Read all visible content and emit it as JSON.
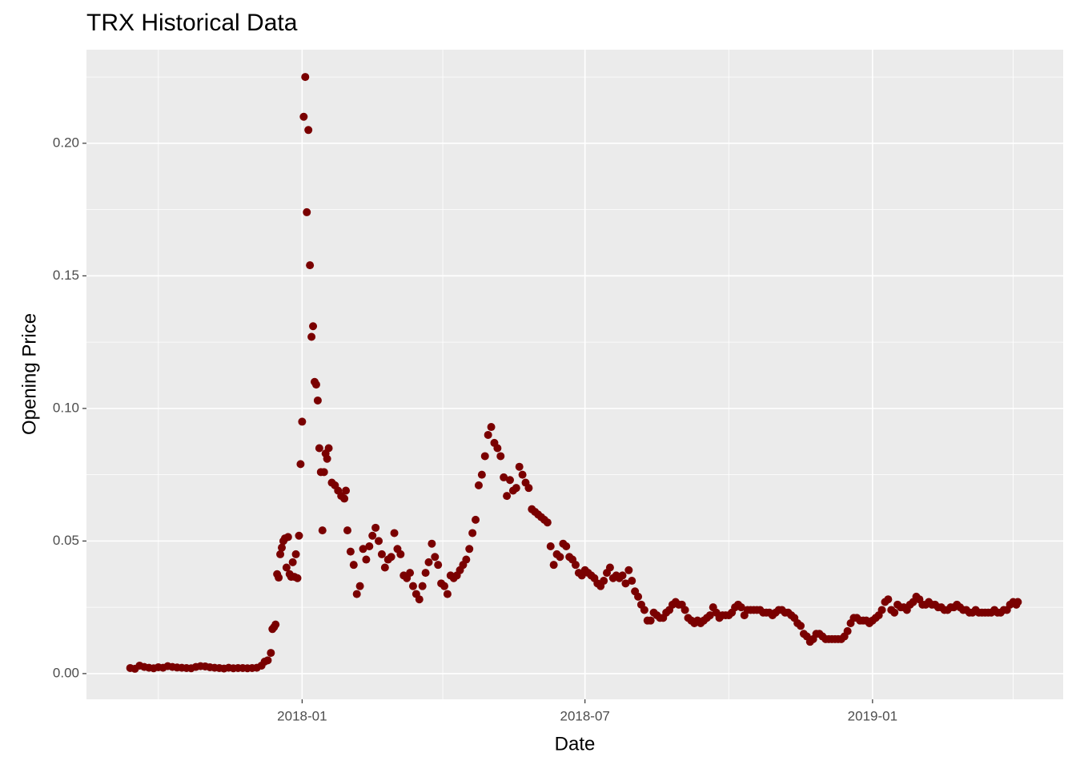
{
  "chart_data": {
    "type": "scatter",
    "title": "TRX Historical Data",
    "x_label": "Date",
    "y_label": "Opening Price",
    "color": "#7a0000",
    "grid": true,
    "xlim": [
      "2017-08-16",
      "2019-05-03"
    ],
    "ylim": [
      -0.0097,
      0.2353
    ],
    "xticks": [
      {
        "value": "2018-01-01",
        "label": "2018-01"
      },
      {
        "value": "2018-07-01",
        "label": "2018-07"
      },
      {
        "value": "2019-01-01",
        "label": "2019-01"
      }
    ],
    "yticks": [
      {
        "value": 0,
        "label": "0.00"
      },
      {
        "value": 0.05,
        "label": "0.05"
      },
      {
        "value": 0.1,
        "label": "0.10"
      },
      {
        "value": 0.15,
        "label": "0.15"
      },
      {
        "value": 0.2,
        "label": "0.20"
      }
    ],
    "x_minor_ticks": [
      "2017-10-01",
      "2018-04-01",
      "2018-10-01",
      "2019-04-01"
    ],
    "y_minor_ticks": [
      0.025,
      0.075,
      0.125,
      0.175,
      0.225
    ],
    "x": [
      "2017-09-13",
      "2017-09-16",
      "2017-09-19",
      "2017-09-22",
      "2017-09-25",
      "2017-09-28",
      "2017-10-01",
      "2017-10-04",
      "2017-10-07",
      "2017-10-10",
      "2017-10-13",
      "2017-10-16",
      "2017-10-19",
      "2017-10-22",
      "2017-10-25",
      "2017-10-28",
      "2017-10-31",
      "2017-11-03",
      "2017-11-06",
      "2017-11-09",
      "2017-11-12",
      "2017-11-15",
      "2017-11-18",
      "2017-11-21",
      "2017-11-24",
      "2017-11-27",
      "2017-11-30",
      "2017-12-03",
      "2017-12-06",
      "2017-12-08",
      "2017-12-10",
      "2017-12-12",
      "2017-12-13",
      "2017-12-14",
      "2017-12-15",
      "2017-12-16",
      "2017-12-17",
      "2017-12-18",
      "2017-12-19",
      "2017-12-20",
      "2017-12-21",
      "2017-12-22",
      "2017-12-23",
      "2017-12-24",
      "2017-12-25",
      "2017-12-26",
      "2017-12-27",
      "2017-12-28",
      "2017-12-29",
      "2017-12-30",
      "2017-12-31",
      "2018-01-01",
      "2018-01-02",
      "2018-01-03",
      "2018-01-04",
      "2018-01-05",
      "2018-01-06",
      "2018-01-07",
      "2018-01-08",
      "2018-01-09",
      "2018-01-10",
      "2018-01-11",
      "2018-01-12",
      "2018-01-13",
      "2018-01-14",
      "2018-01-15",
      "2018-01-16",
      "2018-01-17",
      "2018-01-18",
      "2018-01-20",
      "2018-01-22",
      "2018-01-24",
      "2018-01-26",
      "2018-01-28",
      "2018-01-29",
      "2018-01-30",
      "2018-02-01",
      "2018-02-03",
      "2018-02-05",
      "2018-02-07",
      "2018-02-09",
      "2018-02-11",
      "2018-02-13",
      "2018-02-15",
      "2018-02-17",
      "2018-02-19",
      "2018-02-21",
      "2018-02-23",
      "2018-02-25",
      "2018-02-27",
      "2018-03-01",
      "2018-03-03",
      "2018-03-05",
      "2018-03-07",
      "2018-03-09",
      "2018-03-11",
      "2018-03-13",
      "2018-03-15",
      "2018-03-17",
      "2018-03-19",
      "2018-03-21",
      "2018-03-23",
      "2018-03-25",
      "2018-03-27",
      "2018-03-29",
      "2018-03-31",
      "2018-04-02",
      "2018-04-04",
      "2018-04-06",
      "2018-04-08",
      "2018-04-10",
      "2018-04-12",
      "2018-04-14",
      "2018-04-16",
      "2018-04-18",
      "2018-04-20",
      "2018-04-22",
      "2018-04-24",
      "2018-04-26",
      "2018-04-28",
      "2018-04-30",
      "2018-05-02",
      "2018-05-04",
      "2018-05-06",
      "2018-05-08",
      "2018-05-10",
      "2018-05-12",
      "2018-05-14",
      "2018-05-16",
      "2018-05-18",
      "2018-05-20",
      "2018-05-22",
      "2018-05-24",
      "2018-05-26",
      "2018-05-28",
      "2018-05-30",
      "2018-06-01",
      "2018-06-03",
      "2018-06-05",
      "2018-06-07",
      "2018-06-09",
      "2018-06-11",
      "2018-06-13",
      "2018-06-15",
      "2018-06-17",
      "2018-06-19",
      "2018-06-21",
      "2018-06-23",
      "2018-06-25",
      "2018-06-27",
      "2018-06-29",
      "2018-07-01",
      "2018-07-03",
      "2018-07-05",
      "2018-07-07",
      "2018-07-09",
      "2018-07-11",
      "2018-07-13",
      "2018-07-15",
      "2018-07-17",
      "2018-07-19",
      "2018-07-21",
      "2018-07-23",
      "2018-07-25",
      "2018-07-27",
      "2018-07-29",
      "2018-07-31",
      "2018-08-02",
      "2018-08-04",
      "2018-08-06",
      "2018-08-08",
      "2018-08-10",
      "2018-08-12",
      "2018-08-14",
      "2018-08-16",
      "2018-08-18",
      "2018-08-20",
      "2018-08-22",
      "2018-08-24",
      "2018-08-26",
      "2018-08-28",
      "2018-08-30",
      "2018-09-01",
      "2018-09-03",
      "2018-09-05",
      "2018-09-07",
      "2018-09-09",
      "2018-09-11",
      "2018-09-13",
      "2018-09-15",
      "2018-09-17",
      "2018-09-19",
      "2018-09-21",
      "2018-09-23",
      "2018-09-25",
      "2018-09-27",
      "2018-09-29",
      "2018-10-01",
      "2018-10-03",
      "2018-10-05",
      "2018-10-07",
      "2018-10-09",
      "2018-10-11",
      "2018-10-13",
      "2018-10-15",
      "2018-10-17",
      "2018-10-19",
      "2018-10-21",
      "2018-10-23",
      "2018-10-25",
      "2018-10-27",
      "2018-10-29",
      "2018-10-31",
      "2018-11-02",
      "2018-11-04",
      "2018-11-06",
      "2018-11-08",
      "2018-11-10",
      "2018-11-12",
      "2018-11-14",
      "2018-11-16",
      "2018-11-18",
      "2018-11-20",
      "2018-11-22",
      "2018-11-24",
      "2018-11-26",
      "2018-11-28",
      "2018-11-30",
      "2018-12-02",
      "2018-12-04",
      "2018-12-06",
      "2018-12-08",
      "2018-12-10",
      "2018-12-12",
      "2018-12-14",
      "2018-12-16",
      "2018-12-18",
      "2018-12-20",
      "2018-12-22",
      "2018-12-24",
      "2018-12-26",
      "2018-12-28",
      "2018-12-30",
      "2019-01-01",
      "2019-01-03",
      "2019-01-05",
      "2019-01-07",
      "2019-01-09",
      "2019-01-11",
      "2019-01-13",
      "2019-01-15",
      "2019-01-17",
      "2019-01-19",
      "2019-01-21",
      "2019-01-23",
      "2019-01-25",
      "2019-01-27",
      "2019-01-29",
      "2019-01-31",
      "2019-02-02",
      "2019-02-04",
      "2019-02-06",
      "2019-02-08",
      "2019-02-10",
      "2019-02-12",
      "2019-02-14",
      "2019-02-16",
      "2019-02-18",
      "2019-02-20",
      "2019-02-22",
      "2019-02-24",
      "2019-02-26",
      "2019-02-28",
      "2019-03-02",
      "2019-03-04",
      "2019-03-06",
      "2019-03-08",
      "2019-03-10",
      "2019-03-12",
      "2019-03-14",
      "2019-03-16",
      "2019-03-18",
      "2019-03-20",
      "2019-03-22",
      "2019-03-24",
      "2019-03-26",
      "2019-03-28",
      "2019-03-30",
      "2019-04-01",
      "2019-04-03",
      "2019-04-04"
    ],
    "values": [
      0.0021,
      0.0018,
      0.003,
      0.0025,
      0.0022,
      0.002,
      0.0024,
      0.0022,
      0.0028,
      0.0025,
      0.0023,
      0.0022,
      0.0021,
      0.002,
      0.0025,
      0.0028,
      0.0027,
      0.0024,
      0.0022,
      0.0021,
      0.0019,
      0.0022,
      0.002,
      0.0021,
      0.0021,
      0.002,
      0.0021,
      0.0022,
      0.003,
      0.0045,
      0.005,
      0.0078,
      0.0168,
      0.0175,
      0.0185,
      0.0375,
      0.0362,
      0.045,
      0.0475,
      0.05,
      0.051,
      0.04,
      0.0515,
      0.0375,
      0.0365,
      0.042,
      0.0365,
      0.045,
      0.036,
      0.052,
      0.079,
      0.095,
      0.21,
      0.225,
      0.174,
      0.205,
      0.154,
      0.127,
      0.131,
      0.11,
      0.109,
      0.103,
      0.085,
      0.076,
      0.054,
      0.076,
      0.083,
      0.081,
      0.085,
      0.072,
      0.071,
      0.069,
      0.067,
      0.066,
      0.069,
      0.054,
      0.046,
      0.041,
      0.03,
      0.033,
      0.047,
      0.043,
      0.048,
      0.052,
      0.055,
      0.05,
      0.045,
      0.04,
      0.043,
      0.044,
      0.053,
      0.047,
      0.045,
      0.037,
      0.036,
      0.038,
      0.033,
      0.03,
      0.028,
      0.033,
      0.038,
      0.042,
      0.049,
      0.044,
      0.041,
      0.034,
      0.033,
      0.03,
      0.037,
      0.036,
      0.037,
      0.039,
      0.041,
      0.043,
      0.047,
      0.053,
      0.058,
      0.071,
      0.075,
      0.082,
      0.09,
      0.093,
      0.087,
      0.085,
      0.082,
      0.074,
      0.067,
      0.073,
      0.069,
      0.07,
      0.078,
      0.075,
      0.072,
      0.07,
      0.062,
      0.061,
      0.06,
      0.059,
      0.058,
      0.057,
      0.048,
      0.041,
      0.045,
      0.044,
      0.049,
      0.048,
      0.044,
      0.043,
      0.041,
      0.038,
      0.037,
      0.039,
      0.038,
      0.037,
      0.036,
      0.034,
      0.033,
      0.035,
      0.038,
      0.04,
      0.036,
      0.037,
      0.036,
      0.037,
      0.034,
      0.039,
      0.035,
      0.031,
      0.029,
      0.026,
      0.024,
      0.02,
      0.02,
      0.023,
      0.022,
      0.021,
      0.021,
      0.023,
      0.024,
      0.026,
      0.027,
      0.026,
      0.026,
      0.024,
      0.021,
      0.02,
      0.019,
      0.02,
      0.019,
      0.02,
      0.021,
      0.022,
      0.025,
      0.023,
      0.021,
      0.022,
      0.022,
      0.022,
      0.023,
      0.025,
      0.026,
      0.025,
      0.022,
      0.024,
      0.024,
      0.024,
      0.024,
      0.024,
      0.023,
      0.023,
      0.023,
      0.022,
      0.023,
      0.024,
      0.024,
      0.023,
      0.023,
      0.022,
      0.021,
      0.019,
      0.018,
      0.015,
      0.014,
      0.012,
      0.013,
      0.015,
      0.015,
      0.014,
      0.013,
      0.013,
      0.013,
      0.013,
      0.013,
      0.013,
      0.014,
      0.016,
      0.019,
      0.021,
      0.021,
      0.02,
      0.02,
      0.02,
      0.019,
      0.02,
      0.021,
      0.022,
      0.024,
      0.027,
      0.028,
      0.024,
      0.023,
      0.026,
      0.025,
      0.025,
      0.024,
      0.026,
      0.027,
      0.029,
      0.028,
      0.026,
      0.026,
      0.027,
      0.026,
      0.026,
      0.025,
      0.025,
      0.024,
      0.024,
      0.025,
      0.025,
      0.026,
      0.025,
      0.024,
      0.024,
      0.023,
      0.023,
      0.024,
      0.023,
      0.023,
      0.023,
      0.023,
      0.023,
      0.024,
      0.023,
      0.023,
      0.024,
      0.024,
      0.026,
      0.027,
      0.026,
      0.027
    ]
  }
}
